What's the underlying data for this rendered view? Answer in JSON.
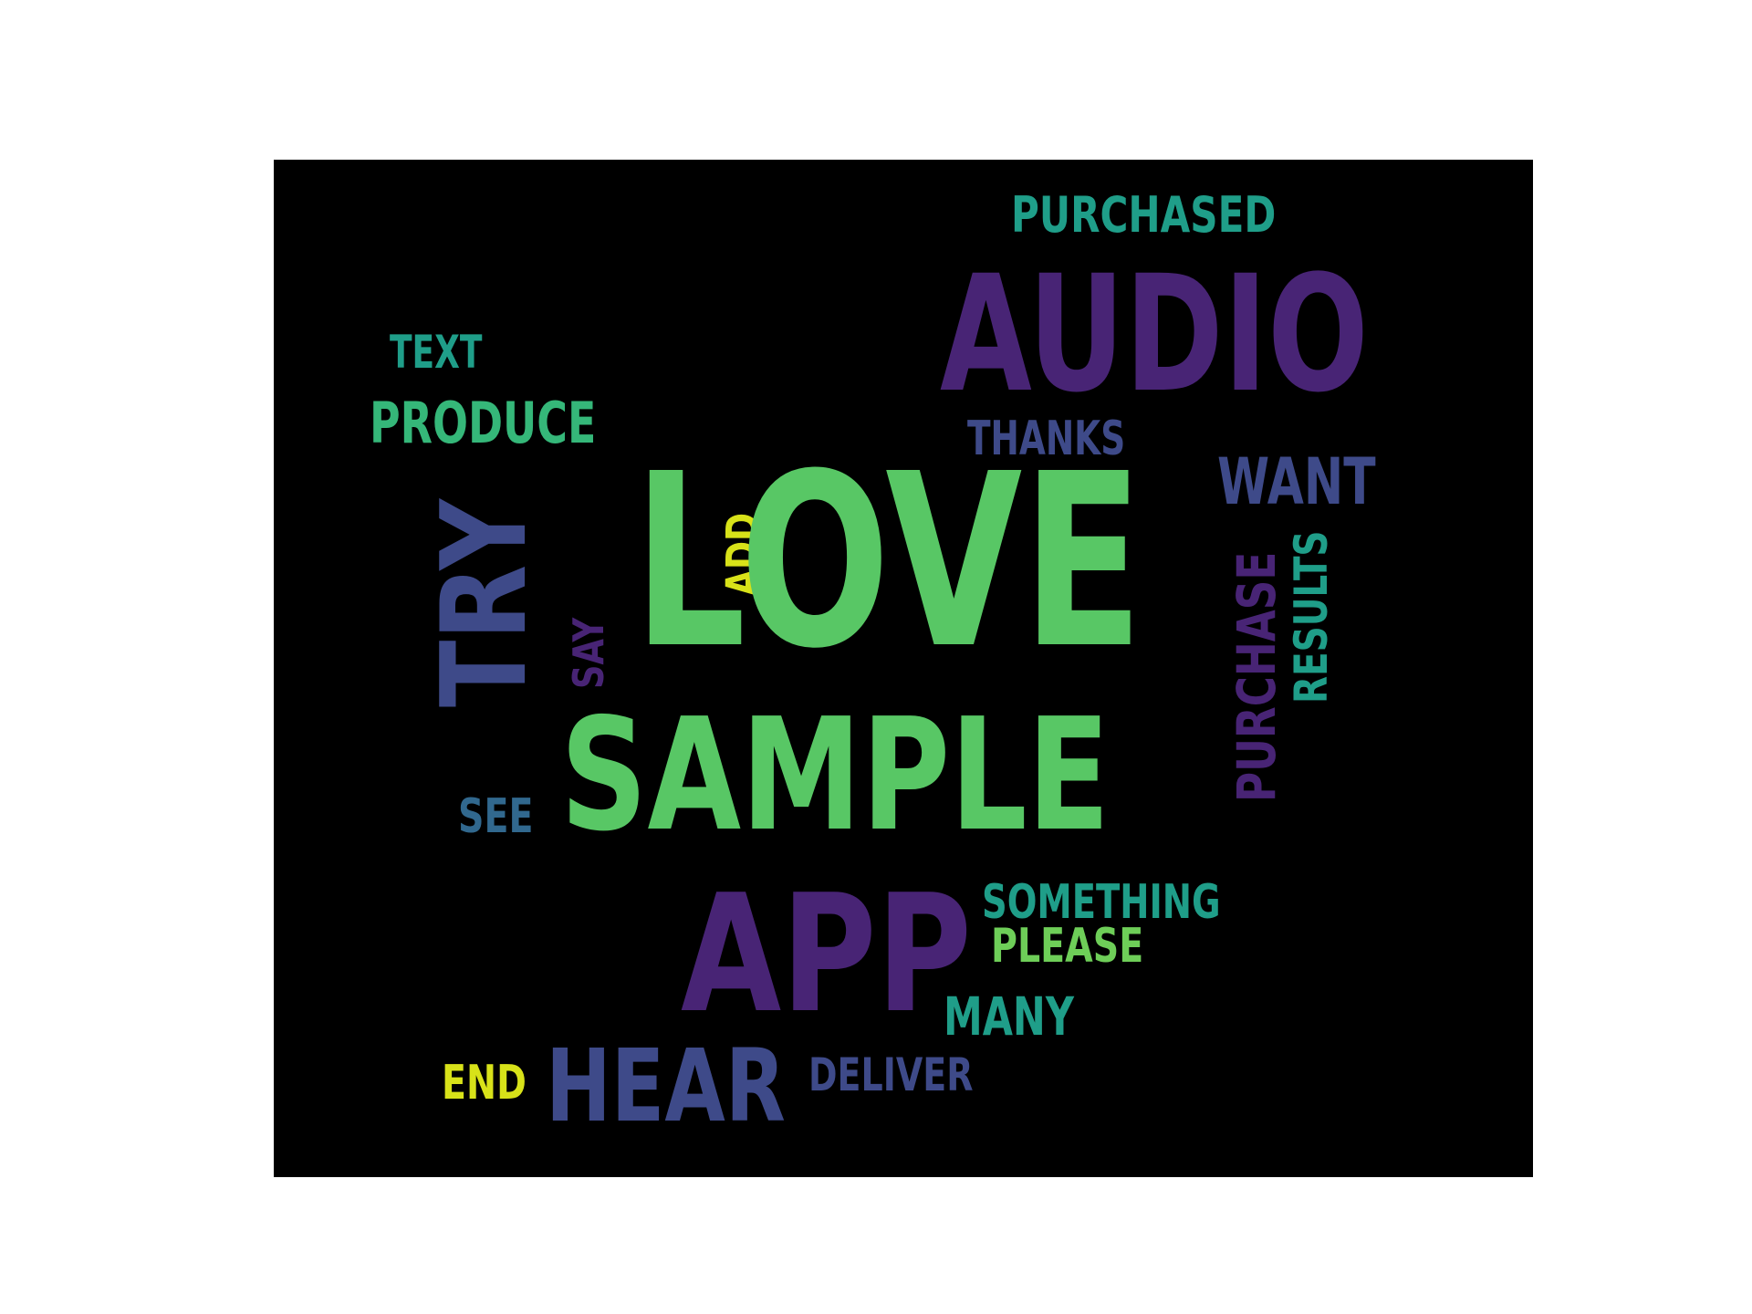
{
  "wordcloud": {
    "palette": {
      "purple": "#482475",
      "indigo": "#3e4a89",
      "blue": "#31688e",
      "teal": "#1f9e89",
      "green": "#35b779",
      "lightgreen": "#6ece58",
      "brightgreen": "#58c765",
      "yellow": "#d8e219",
      "background": "#000000"
    },
    "words": {
      "purchased": "PURCHASED",
      "audio": "AUDIO",
      "text": "TEXT",
      "produce": "PRODUCE",
      "thanks": "THANKS",
      "want": "WANT",
      "try": "TRY",
      "add": "ADD",
      "love": "LOVE",
      "say": "SAY",
      "purchase": "PURCHASE",
      "results": "RESULTS",
      "sample": "SAMPLE",
      "see": "SEE",
      "app": "APP",
      "something": "SOMETHING",
      "please": "PLEASE",
      "many": "MANY",
      "end": "END",
      "hear": "HEAR",
      "deliver": "DELIVER"
    }
  }
}
